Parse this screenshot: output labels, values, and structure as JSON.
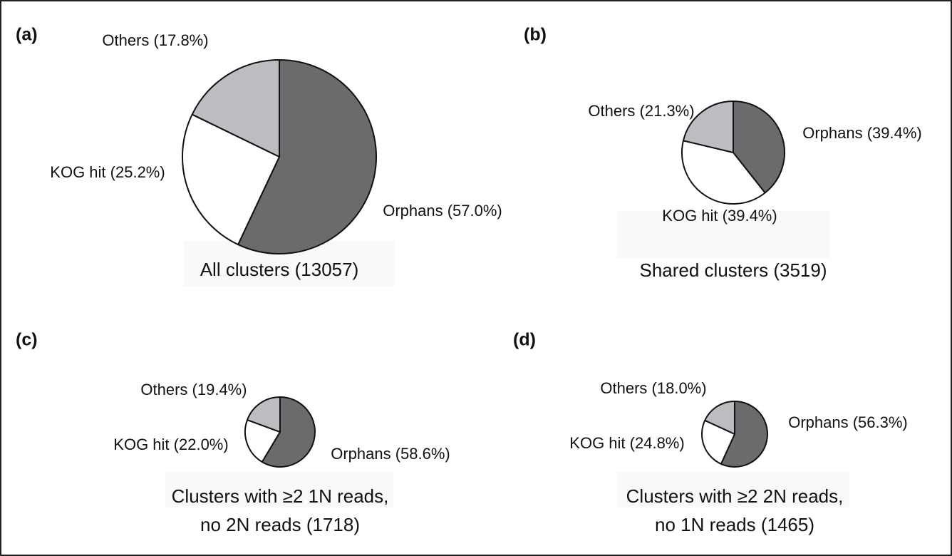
{
  "chart_data": [
    {
      "type": "pie",
      "panel": "(a)",
      "title": [
        "All clusters (13057)"
      ],
      "values": [
        57.0,
        25.2,
        17.8
      ],
      "value_labels": [
        "Orphans (57.0%)",
        "KOG hit (25.2%)",
        "Others (17.8%)"
      ],
      "colors": [
        "#6b6b6d",
        "#ffffff",
        "#bcbdc0"
      ]
    },
    {
      "type": "pie",
      "panel": "(b)",
      "title": [
        "Shared clusters (3519)"
      ],
      "values": [
        39.4,
        39.4,
        21.3
      ],
      "value_labels": [
        "Orphans (39.4%)",
        "KOG hit (39.4%)",
        "Others (21.3%)"
      ],
      "colors": [
        "#6b6b6d",
        "#ffffff",
        "#bcbdc0"
      ]
    },
    {
      "type": "pie",
      "panel": "(c)",
      "title": [
        "Clusters with ≥2 1N reads,",
        "no 2N reads (1718)"
      ],
      "values": [
        58.6,
        22.0,
        19.4
      ],
      "value_labels": [
        "Orphans (58.6%)",
        "KOG hit (22.0%)",
        "Others (19.4%)"
      ],
      "colors": [
        "#6b6b6d",
        "#ffffff",
        "#bcbdc0"
      ]
    },
    {
      "type": "pie",
      "panel": "(d)",
      "title": [
        "Clusters with ≥2 2N reads,",
        "no 1N reads (1465)"
      ],
      "values": [
        56.3,
        24.8,
        18.0
      ],
      "value_labels": [
        "Orphans (56.3%)",
        "KOG hit (24.8%)",
        "Others (18.0%)"
      ],
      "colors": [
        "#6b6b6d",
        "#ffffff",
        "#bcbdc0"
      ]
    }
  ]
}
